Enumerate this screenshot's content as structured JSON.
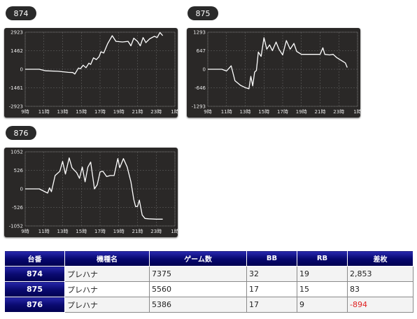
{
  "graphs": [
    {
      "machine": "874",
      "y_ticks": [
        "2923",
        "1462",
        "0",
        "-1461",
        "-2923"
      ],
      "x_ticks": [
        "9時",
        "11時",
        "13時",
        "15時",
        "17時",
        "19時",
        "21時",
        "23時",
        "1時"
      ]
    },
    {
      "machine": "875",
      "y_ticks": [
        "1293",
        "647",
        "0",
        "-646",
        "-1293"
      ],
      "x_ticks": [
        "9時",
        "11時",
        "13時",
        "15時",
        "17時",
        "19時",
        "21時",
        "23時",
        "1時"
      ]
    },
    {
      "machine": "876",
      "y_ticks": [
        "1052",
        "526",
        "0",
        "-526",
        "-1052"
      ],
      "x_ticks": [
        "9時",
        "11時",
        "13時",
        "15時",
        "17時",
        "19時",
        "21時",
        "23時",
        "1時"
      ]
    }
  ],
  "chart_data": [
    {
      "type": "line",
      "title": "874",
      "ylim": [
        -2923,
        2923
      ],
      "xlim_hours": [
        9,
        25
      ],
      "points": [
        [
          9,
          0
        ],
        [
          10.5,
          0
        ],
        [
          11.2,
          -120
        ],
        [
          12.5,
          -160
        ],
        [
          13.6,
          -240
        ],
        [
          14.1,
          -260
        ],
        [
          14.3,
          -380
        ],
        [
          14.7,
          100
        ],
        [
          14.9,
          40
        ],
        [
          15.2,
          320
        ],
        [
          15.5,
          120
        ],
        [
          15.8,
          480
        ],
        [
          16.0,
          380
        ],
        [
          16.3,
          900
        ],
        [
          16.6,
          760
        ],
        [
          16.9,
          1000
        ],
        [
          17.1,
          1380
        ],
        [
          17.4,
          1280
        ],
        [
          17.8,
          2000
        ],
        [
          18.3,
          2650
        ],
        [
          18.7,
          2200
        ],
        [
          19.4,
          2150
        ],
        [
          20.0,
          2200
        ],
        [
          20.3,
          1850
        ],
        [
          20.6,
          2450
        ],
        [
          21.0,
          2200
        ],
        [
          21.3,
          1850
        ],
        [
          21.6,
          2500
        ],
        [
          21.9,
          2100
        ],
        [
          22.3,
          2400
        ],
        [
          22.8,
          2600
        ],
        [
          23.1,
          2500
        ],
        [
          23.4,
          2900
        ],
        [
          23.7,
          2650
        ]
      ]
    },
    {
      "type": "line",
      "title": "875",
      "ylim": [
        -1293,
        1293
      ],
      "xlim_hours": [
        9,
        25
      ],
      "points": [
        [
          9,
          0
        ],
        [
          10.5,
          0
        ],
        [
          11.0,
          -60
        ],
        [
          11.5,
          120
        ],
        [
          11.9,
          -400
        ],
        [
          12.5,
          -560
        ],
        [
          13.0,
          -640
        ],
        [
          13.4,
          -680
        ],
        [
          13.6,
          -250
        ],
        [
          13.8,
          -580
        ],
        [
          14.0,
          -100
        ],
        [
          14.2,
          -40
        ],
        [
          14.4,
          600
        ],
        [
          14.7,
          450
        ],
        [
          15.0,
          1100
        ],
        [
          15.3,
          700
        ],
        [
          15.6,
          850
        ],
        [
          15.9,
          650
        ],
        [
          16.3,
          950
        ],
        [
          16.6,
          700
        ],
        [
          17.0,
          500
        ],
        [
          17.4,
          1000
        ],
        [
          17.8,
          700
        ],
        [
          18.2,
          900
        ],
        [
          18.5,
          620
        ],
        [
          19.0,
          520
        ],
        [
          19.5,
          520
        ],
        [
          20.0,
          520
        ],
        [
          20.5,
          520
        ],
        [
          21.0,
          520
        ],
        [
          21.3,
          750
        ],
        [
          21.5,
          520
        ],
        [
          22.0,
          500
        ],
        [
          22.4,
          520
        ],
        [
          22.8,
          400
        ],
        [
          23.3,
          300
        ],
        [
          23.7,
          220
        ],
        [
          23.9,
          60
        ]
      ]
    },
    {
      "type": "line",
      "title": "876",
      "ylim": [
        -1052,
        1052
      ],
      "xlim_hours": [
        9,
        25
      ],
      "points": [
        [
          9,
          0
        ],
        [
          10.5,
          0
        ],
        [
          11.4,
          -120
        ],
        [
          11.6,
          30
        ],
        [
          11.8,
          -80
        ],
        [
          12.2,
          380
        ],
        [
          12.7,
          500
        ],
        [
          13.0,
          780
        ],
        [
          13.3,
          420
        ],
        [
          13.7,
          880
        ],
        [
          14.0,
          600
        ],
        [
          14.5,
          460
        ],
        [
          14.8,
          300
        ],
        [
          15.1,
          620
        ],
        [
          15.4,
          200
        ],
        [
          15.7,
          620
        ],
        [
          16.0,
          760
        ],
        [
          16.4,
          0
        ],
        [
          16.7,
          120
        ],
        [
          17.0,
          480
        ],
        [
          17.3,
          500
        ],
        [
          17.7,
          350
        ],
        [
          18.1,
          380
        ],
        [
          18.5,
          380
        ],
        [
          18.9,
          860
        ],
        [
          19.1,
          600
        ],
        [
          19.5,
          860
        ],
        [
          19.9,
          620
        ],
        [
          20.3,
          200
        ],
        [
          20.6,
          -300
        ],
        [
          20.8,
          -500
        ],
        [
          21.0,
          -500
        ],
        [
          21.2,
          -320
        ],
        [
          21.5,
          -740
        ],
        [
          21.8,
          -840
        ],
        [
          22.2,
          -850
        ],
        [
          23.0,
          -860
        ],
        [
          23.7,
          -860
        ]
      ]
    }
  ],
  "table": {
    "headers": [
      "台番",
      "機種名",
      "ゲーム数",
      "BB",
      "RB",
      "差枚"
    ],
    "rows": [
      {
        "machine": "874",
        "name": "プレハナ",
        "games": "7375",
        "bb": "32",
        "rb": "19",
        "diff": "2,853"
      },
      {
        "machine": "875",
        "name": "プレハナ",
        "games": "5560",
        "bb": "17",
        "rb": "15",
        "diff": "83"
      },
      {
        "machine": "876",
        "name": "プレハナ",
        "games": "5386",
        "bb": "17",
        "rb": "9",
        "diff": "-894"
      }
    ]
  },
  "colors": {
    "panel_bg": "#2a2827",
    "line": "#ffffff",
    "header_navy": "#000050",
    "negative": "#e02020"
  }
}
